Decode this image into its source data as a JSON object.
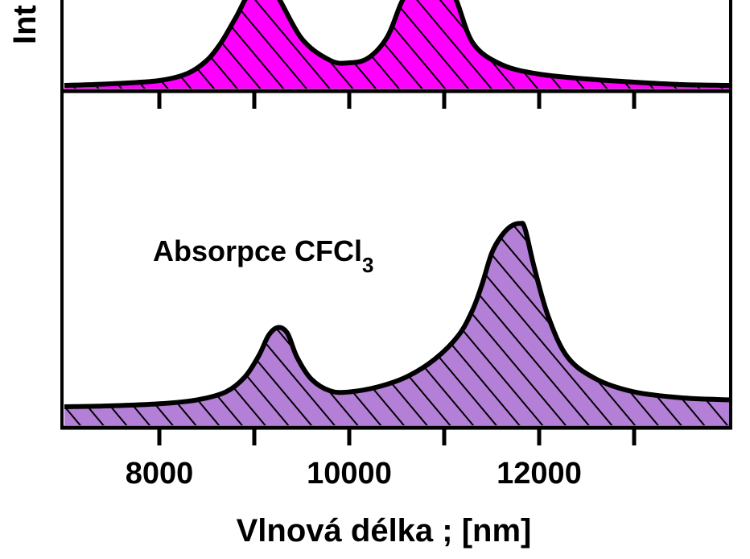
{
  "chart_data": [
    {
      "type": "area",
      "panel": "top",
      "color": "#ff00ff",
      "ylabel": "Int",
      "x": [
        7000,
        7500,
        8000,
        8300,
        8500,
        8650,
        8800,
        9000,
        9200,
        9500,
        9800,
        10000,
        10200,
        10400,
        10550,
        10700,
        10900,
        11100,
        11300,
        11600,
        12000,
        12500,
        13000,
        13500,
        14000
      ],
      "y": [
        0.02,
        0.04,
        0.08,
        0.17,
        0.33,
        0.55,
        0.85,
        1.25,
        1.2,
        0.6,
        0.33,
        0.3,
        0.36,
        0.62,
        1.05,
        1.35,
        1.4,
        1.15,
        0.55,
        0.28,
        0.16,
        0.1,
        0.06,
        0.03,
        0.02
      ]
    },
    {
      "type": "area",
      "panel": "bottom",
      "color": "#b47fd6",
      "annotation": {
        "main": "Absorpce CFCl",
        "sub": "3"
      },
      "xlabel": "Vlnová délka ; [nm]",
      "xlim": [
        7000,
        14000
      ],
      "xticks": [
        8000,
        9000,
        10000,
        11000,
        12000,
        13000
      ],
      "xtick_labels": [
        "8000",
        "10000",
        "12000"
      ],
      "x": [
        7000,
        7500,
        8000,
        8400,
        8700,
        8900,
        9050,
        9150,
        9250,
        9350,
        9450,
        9600,
        9800,
        10000,
        10300,
        10600,
        10900,
        11150,
        11300,
        11400,
        11500,
        11600,
        11700,
        11800,
        11850,
        11950,
        12100,
        12300,
        12600,
        13000,
        13500,
        14000
      ],
      "y": [
        0.0,
        0.01,
        0.03,
        0.07,
        0.15,
        0.3,
        0.52,
        0.72,
        0.8,
        0.74,
        0.5,
        0.28,
        0.16,
        0.15,
        0.2,
        0.3,
        0.48,
        0.72,
        0.98,
        1.24,
        1.55,
        1.72,
        1.82,
        1.85,
        1.8,
        1.4,
        0.9,
        0.5,
        0.28,
        0.15,
        0.09,
        0.07
      ]
    }
  ]
}
